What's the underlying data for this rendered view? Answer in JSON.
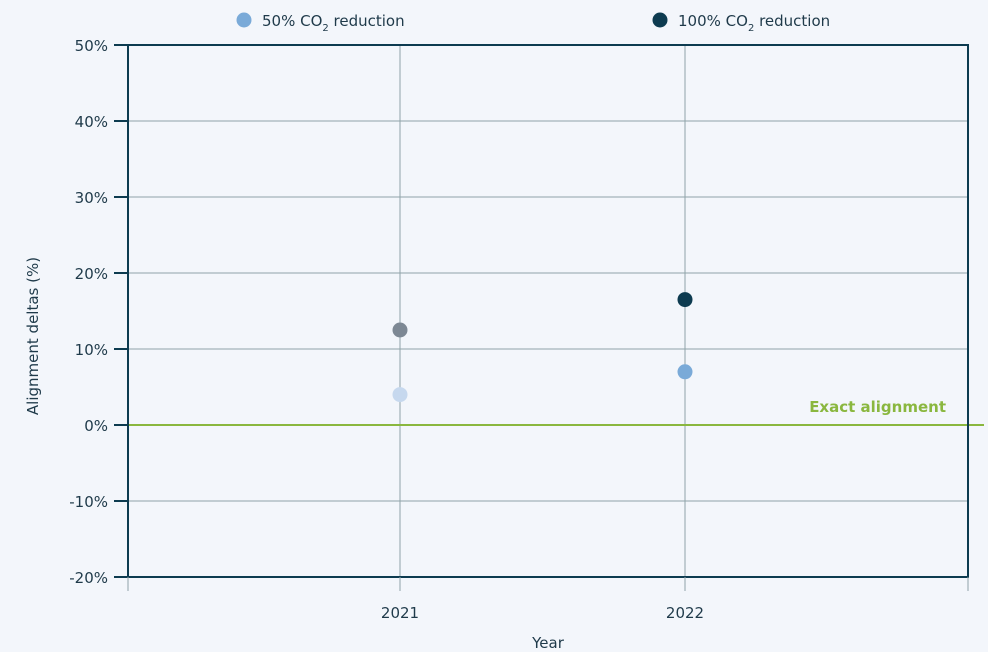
{
  "chart_data": {
    "type": "scatter",
    "xlabel": "Year",
    "ylabel": "Alignment deltas (%)",
    "categories": [
      "2021",
      "2022"
    ],
    "ylim": [
      -20,
      50
    ],
    "yticks": [
      -20,
      -10,
      0,
      10,
      20,
      30,
      40,
      50
    ],
    "ytick_labels": [
      "-20%",
      "-10%",
      "0%",
      "10%",
      "20%",
      "30%",
      "40%",
      "50%"
    ],
    "grid": true,
    "legend_position": "top",
    "legend": [
      {
        "name": "50% CO",
        "sub": "2",
        "suffix": " reduction",
        "color": "#7aaad8"
      },
      {
        "name": "100% CO",
        "sub": "2",
        "suffix": " reduction",
        "color": "#0d3b50"
      }
    ],
    "points": [
      {
        "x": "2021",
        "y": 4,
        "color": "#c6d8ee"
      },
      {
        "x": "2021",
        "y": 12.5,
        "color": "#7d8894"
      },
      {
        "x": "2022",
        "y": 7,
        "color": "#7aaad8"
      },
      {
        "x": "2022",
        "y": 16.5,
        "color": "#0d3b50"
      }
    ],
    "reference_line": {
      "y": 0,
      "label": "Exact alignment",
      "color": "#8ab73f"
    }
  },
  "colors": {
    "frame": "#0d3b50",
    "grid": "#8fa3a8",
    "background": "#f3f6fb"
  }
}
